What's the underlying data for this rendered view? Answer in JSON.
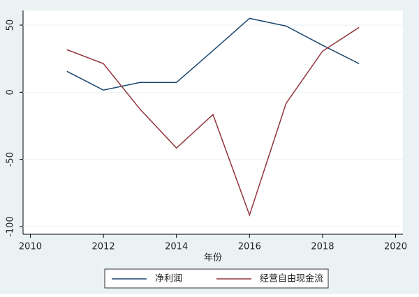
{
  "chart_data": {
    "type": "line",
    "x": [
      2011,
      2012,
      2013,
      2014,
      2015,
      2016,
      2017,
      2018,
      2019
    ],
    "series": [
      {
        "name": "净利润",
        "color": "#1a476f",
        "values": [
          15.6,
          1.6,
          7.3,
          7.3,
          31,
          55,
          49.3,
          35,
          21.3
        ]
      },
      {
        "name": "经营自由现金流",
        "color": "#90353b",
        "values": [
          31.7,
          21.3,
          -12.5,
          -41.5,
          -16.6,
          -91.4,
          -8.3,
          30.6,
          48.3
        ]
      }
    ],
    "xlabel": "年份",
    "xlim": [
      2009.8,
      2020.2
    ],
    "xticks": [
      2010,
      2012,
      2014,
      2016,
      2018,
      2020
    ],
    "ylim": [
      -105.7,
      60.9
    ],
    "yticks": [
      -100,
      -50,
      0,
      50
    ],
    "grid": true,
    "legend": "bottom"
  }
}
